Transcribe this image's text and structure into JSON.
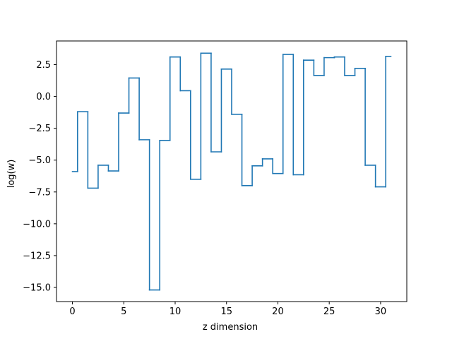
{
  "chart_data": {
    "type": "line",
    "drawstyle": "steps-mid",
    "title": "",
    "xlabel": "z dimension",
    "ylabel": "log(w)",
    "xlim": [
      -1.55,
      32.55
    ],
    "ylim": [
      -16.11,
      4.36
    ],
    "xticks": [
      0,
      5,
      10,
      15,
      20,
      25,
      30
    ],
    "xtick_labels": [
      "0",
      "5",
      "10",
      "15",
      "20",
      "25",
      "30"
    ],
    "yticks": [
      2.5,
      0.0,
      -2.5,
      -5.0,
      -7.5,
      -10.0,
      -12.5,
      -15.0
    ],
    "ytick_labels": [
      "2.5",
      "0.0",
      "−2.5",
      "−5.0",
      "−7.5",
      "−10.0",
      "−12.5",
      "−15.0"
    ],
    "grid": false,
    "legend": "none",
    "series": [
      {
        "color": "#1f77b4",
        "x": [
          0,
          1,
          2,
          3,
          4,
          5,
          6,
          7,
          8,
          9,
          10,
          11,
          12,
          13,
          14,
          15,
          16,
          17,
          18,
          19,
          20,
          21,
          22,
          23,
          24,
          25,
          26,
          27,
          28,
          29,
          30,
          31
        ],
        "values": [
          -5.9,
          -1.2,
          -7.2,
          -5.4,
          -5.85,
          -1.3,
          1.45,
          -3.4,
          -15.2,
          -3.45,
          3.1,
          0.45,
          -6.5,
          3.4,
          -4.35,
          2.15,
          -1.4,
          -7.0,
          -5.45,
          -4.9,
          -6.05,
          3.3,
          -6.15,
          2.85,
          1.65,
          3.05,
          3.1,
          1.65,
          2.2,
          -5.4,
          -7.1,
          3.15
        ]
      }
    ]
  }
}
